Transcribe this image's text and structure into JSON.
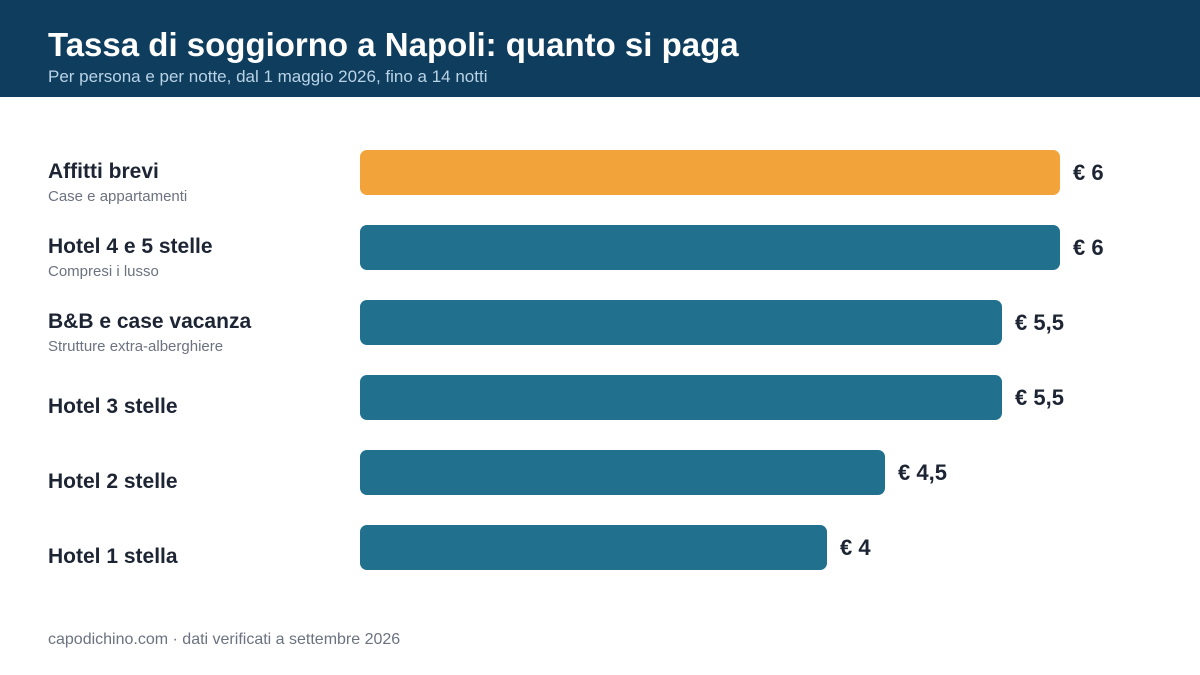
{
  "header": {
    "title": "Tassa di soggiorno a Napoli: quanto si paga",
    "subtitle": "Per persona e per notte, dal 1 maggio 2026, fino a 14 notti"
  },
  "footer": {
    "source": "capodichino.com · dati verificati a settembre 2026"
  },
  "colors": {
    "header_bg": "#0f3d5e",
    "bar_default": "#21708d",
    "bar_highlight": "#f2a33a"
  },
  "chart_data": {
    "type": "bar",
    "orientation": "horizontal",
    "title": "Tassa di soggiorno a Napoli: quanto si paga",
    "subtitle": "Per persona e per notte, dal 1 maggio 2026, fino a 14 notti",
    "xlim": [
      0,
      6
    ],
    "grid": false,
    "categories": [
      {
        "label": "Affitti brevi",
        "sublabel": "Case e appartamenti",
        "value": 6,
        "value_label": "€ 6",
        "highlight": true
      },
      {
        "label": "Hotel 4 e 5 stelle",
        "sublabel": "Compresi i lusso",
        "value": 6,
        "value_label": "€ 6",
        "highlight": false
      },
      {
        "label": "B&B e case vacanza",
        "sublabel": "Strutture extra-alberghiere",
        "value": 5.5,
        "value_label": "€ 5,5",
        "highlight": false
      },
      {
        "label": "Hotel 3 stelle",
        "sublabel": "",
        "value": 5.5,
        "value_label": "€ 5,5",
        "highlight": false
      },
      {
        "label": "Hotel 2 stelle",
        "sublabel": "",
        "value": 4.5,
        "value_label": "€ 4,5",
        "highlight": false
      },
      {
        "label": "Hotel 1 stella",
        "sublabel": "",
        "value": 4,
        "value_label": "€ 4",
        "highlight": false
      }
    ]
  }
}
